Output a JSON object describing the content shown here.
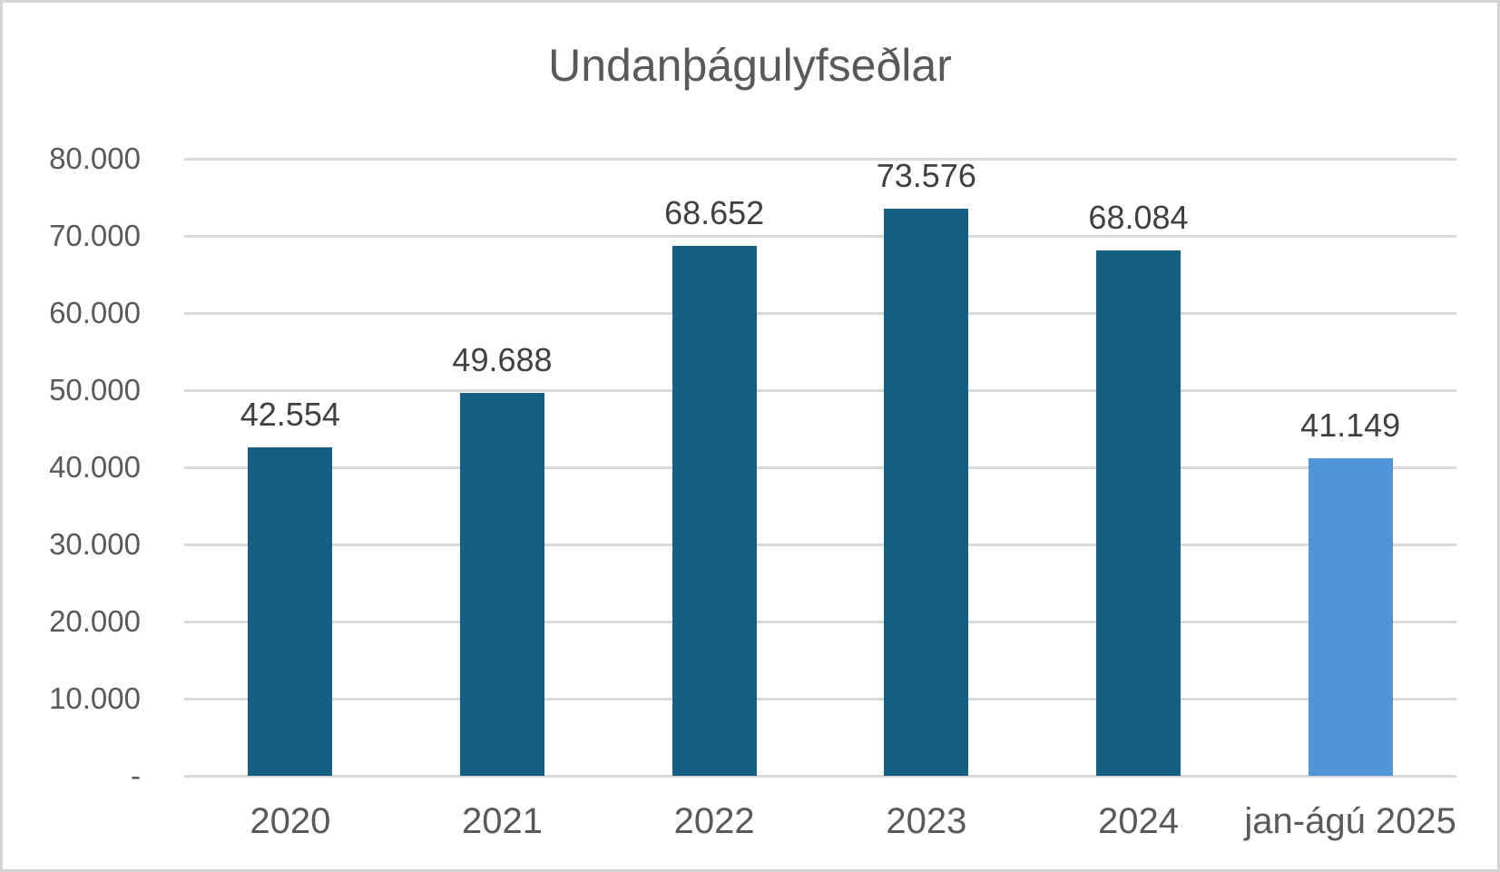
{
  "chart_data": {
    "type": "bar",
    "title": "Undanþágulyfseðlar",
    "categories": [
      "2020",
      "2021",
      "2022",
      "2023",
      "2024",
      "jan-ágú 2025"
    ],
    "values": [
      42554,
      49688,
      68652,
      73576,
      68084,
      41149
    ],
    "data_labels": [
      "42.554",
      "49.688",
      "68.652",
      "73.576",
      "68.084",
      "41.149"
    ],
    "bar_colors": [
      "#165E82",
      "#165E82",
      "#165E82",
      "#165E82",
      "#165E82",
      "#4F96D8"
    ],
    "xlabel": "",
    "ylabel": "",
    "ylim": [
      0,
      80000
    ],
    "y_tick_step": 10000,
    "y_tick_labels_bottom_to_top": [
      "-",
      "10.000",
      "20.000",
      "30.000",
      "40.000",
      "50.000",
      "60.000",
      "70.000",
      "80.000"
    ],
    "grid": "horizontal",
    "legend_position": "none",
    "colors": {
      "bar_default": "#165E82",
      "bar_highlight": "#4F96D8",
      "gridline": "#D9D9D9",
      "axis_text": "#595959",
      "data_label_text": "#404040",
      "title_text": "#595959",
      "canvas_border": "#D4D4D4",
      "background": "#FFFFFF"
    }
  }
}
